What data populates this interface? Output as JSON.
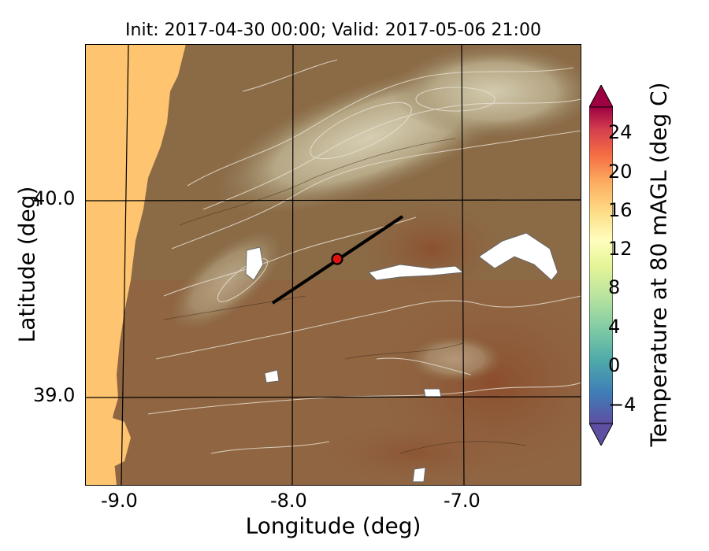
{
  "title": "Init: 2017-04-30 00:00; Valid: 2017-05-06 21:00",
  "axes": {
    "xlabel": "Longitude (deg)",
    "ylabel": "Latitude (deg)",
    "xticks": [
      "-9.0",
      "-8.0",
      "-7.0"
    ],
    "yticks": [
      "40.0",
      "39.0"
    ]
  },
  "colorbar": {
    "label": "Temperature at 80 mAGL (deg C)",
    "ticks": [
      "24",
      "20",
      "16",
      "12",
      "8",
      "4",
      "0",
      "−4"
    ],
    "range": [
      -6,
      28
    ],
    "colors": [
      "#5e4fa2",
      "#3f7fb7",
      "#4ea9a9",
      "#80cba4",
      "#b8e39f",
      "#e6f598",
      "#fffebe",
      "#fee08b",
      "#fdae61",
      "#f46d43",
      "#d53e4f",
      "#9e0142"
    ]
  },
  "map": {
    "ocean_color": "#fec46f",
    "land_color": "#8a6a45",
    "highland_color": "#c4b89c",
    "point_color": "#e0120f",
    "transect_color": "#000000"
  }
}
